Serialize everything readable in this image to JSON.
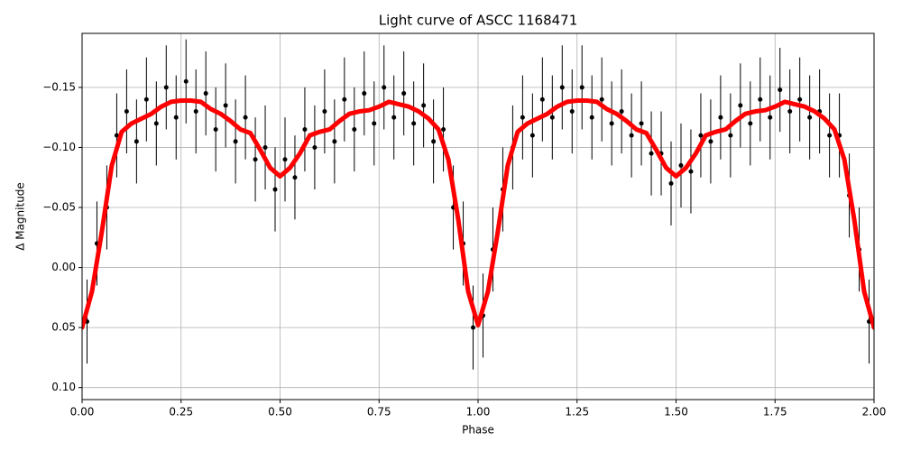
{
  "chart_data": {
    "type": "line",
    "title": "Light curve of ASCC 1168471",
    "x_label": "Phase",
    "y_label": "Δ Magnitude",
    "xlim": [
      0,
      2
    ],
    "ylim": [
      0.11,
      -0.195
    ],
    "xticks": [
      {
        "value": 0,
        "label": "0.00"
      },
      {
        "value": 0.25,
        "label": "0.25"
      },
      {
        "value": 0.5,
        "label": "0.50"
      },
      {
        "value": 0.75,
        "label": "0.75"
      },
      {
        "value": 1,
        "label": "1.00"
      },
      {
        "value": 1.25,
        "label": "1.25"
      },
      {
        "value": 1.5,
        "label": "1.50"
      },
      {
        "value": 1.75,
        "label": "1.75"
      },
      {
        "value": 2,
        "label": "2.00"
      }
    ],
    "yticks": [
      {
        "value": -0.15,
        "label": "−0.15"
      },
      {
        "value": -0.1,
        "label": "−0.10"
      },
      {
        "value": -0.05,
        "label": "−0.05"
      },
      {
        "value": 0,
        "label": "0.00"
      },
      {
        "value": 0.05,
        "label": "0.05"
      },
      {
        "value": 0.1,
        "label": "0.10"
      }
    ],
    "grid": true,
    "series": [
      {
        "color": "#000000",
        "markers": true,
        "errorbars": true,
        "yerr": 0.035,
        "x": [
          0.0125,
          0.0375,
          0.0625,
          0.0875,
          0.1125,
          0.1375,
          0.1625,
          0.1875,
          0.2125,
          0.2375,
          0.2625,
          0.2875,
          0.3125,
          0.3375,
          0.3625,
          0.3875,
          0.4125,
          0.4375,
          0.4625,
          0.4875,
          0.5125,
          0.5375,
          0.5625,
          0.5875,
          0.6125,
          0.6375,
          0.6625,
          0.6875,
          0.7125,
          0.7375,
          0.7625,
          0.7875,
          0.8125,
          0.8375,
          0.8625,
          0.8875,
          0.9125,
          0.9375,
          0.9625,
          0.9875,
          1.0125,
          1.0375,
          1.0625,
          1.0875,
          1.1125,
          1.1375,
          1.1625,
          1.1875,
          1.2125,
          1.2375,
          1.2625,
          1.2875,
          1.3125,
          1.3375,
          1.3625,
          1.3875,
          1.4125,
          1.4375,
          1.4625,
          1.4875,
          1.5125,
          1.5375,
          1.5625,
          1.5875,
          1.6125,
          1.6375,
          1.6625,
          1.6875,
          1.7125,
          1.7375,
          1.7625,
          1.7875,
          1.8125,
          1.8375,
          1.8625,
          1.8875,
          1.9125,
          1.9375,
          1.9625,
          1.9875
        ],
        "values": [
          0.045,
          -0.02,
          -0.05,
          -0.11,
          -0.13,
          -0.105,
          -0.14,
          -0.12,
          -0.15,
          -0.125,
          -0.155,
          -0.13,
          -0.145,
          -0.115,
          -0.135,
          -0.105,
          -0.125,
          -0.09,
          -0.1,
          -0.065,
          -0.09,
          -0.075,
          -0.115,
          -0.1,
          -0.13,
          -0.105,
          -0.14,
          -0.115,
          -0.145,
          -0.12,
          -0.15,
          -0.125,
          -0.145,
          -0.12,
          -0.135,
          -0.105,
          -0.115,
          -0.05,
          -0.02,
          0.05,
          0.04,
          -0.015,
          -0.065,
          -0.1,
          -0.125,
          -0.11,
          -0.14,
          -0.125,
          -0.15,
          -0.13,
          -0.15,
          -0.125,
          -0.14,
          -0.12,
          -0.13,
          -0.11,
          -0.12,
          -0.095,
          -0.095,
          -0.07,
          -0.085,
          -0.08,
          -0.11,
          -0.105,
          -0.125,
          -0.11,
          -0.135,
          -0.12,
          -0.14,
          -0.125,
          -0.148,
          -0.13,
          -0.14,
          -0.125,
          -0.13,
          -0.11,
          -0.11,
          -0.06,
          -0.015,
          0.045
        ]
      },
      {
        "color": "#ff0000",
        "x": [
          0,
          0.025,
          0.05,
          0.075,
          0.1,
          0.125,
          0.15,
          0.175,
          0.2,
          0.225,
          0.25,
          0.275,
          0.3,
          0.325,
          0.35,
          0.375,
          0.4,
          0.425,
          0.45,
          0.475,
          0.5,
          0.525,
          0.55,
          0.575,
          0.6,
          0.625,
          0.65,
          0.675,
          0.7,
          0.725,
          0.75,
          0.775,
          0.8,
          0.825,
          0.85,
          0.875,
          0.9,
          0.925,
          0.95,
          0.975,
          1,
          1.025,
          1.05,
          1.075,
          1.1,
          1.125,
          1.15,
          1.175,
          1.2,
          1.225,
          1.25,
          1.275,
          1.3,
          1.325,
          1.35,
          1.375,
          1.4,
          1.425,
          1.45,
          1.475,
          1.5,
          1.525,
          1.55,
          1.575,
          1.6,
          1.625,
          1.65,
          1.675,
          1.7,
          1.725,
          1.75,
          1.775,
          1.8,
          1.825,
          1.85,
          1.875,
          1.9,
          1.925,
          1.95,
          1.975,
          2
        ],
        "values": [
          0.05,
          0.02,
          -0.03,
          -0.085,
          -0.113,
          -0.12,
          -0.124,
          -0.128,
          -0.134,
          -0.138,
          -0.139,
          -0.139,
          -0.138,
          -0.132,
          -0.128,
          -0.122,
          -0.115,
          -0.112,
          -0.098,
          -0.083,
          -0.076,
          -0.083,
          -0.095,
          -0.11,
          -0.113,
          -0.115,
          -0.122,
          -0.128,
          -0.13,
          -0.131,
          -0.134,
          -0.138,
          -0.136,
          -0.134,
          -0.13,
          -0.124,
          -0.115,
          -0.09,
          -0.04,
          0.02,
          0.048,
          0.02,
          -0.03,
          -0.085,
          -0.113,
          -0.12,
          -0.124,
          -0.128,
          -0.134,
          -0.138,
          -0.139,
          -0.139,
          -0.138,
          -0.132,
          -0.128,
          -0.122,
          -0.115,
          -0.112,
          -0.098,
          -0.083,
          -0.076,
          -0.083,
          -0.095,
          -0.11,
          -0.113,
          -0.115,
          -0.122,
          -0.128,
          -0.13,
          -0.131,
          -0.134,
          -0.138,
          -0.136,
          -0.134,
          -0.13,
          -0.124,
          -0.115,
          -0.09,
          -0.04,
          0.02,
          0.05
        ]
      }
    ]
  }
}
